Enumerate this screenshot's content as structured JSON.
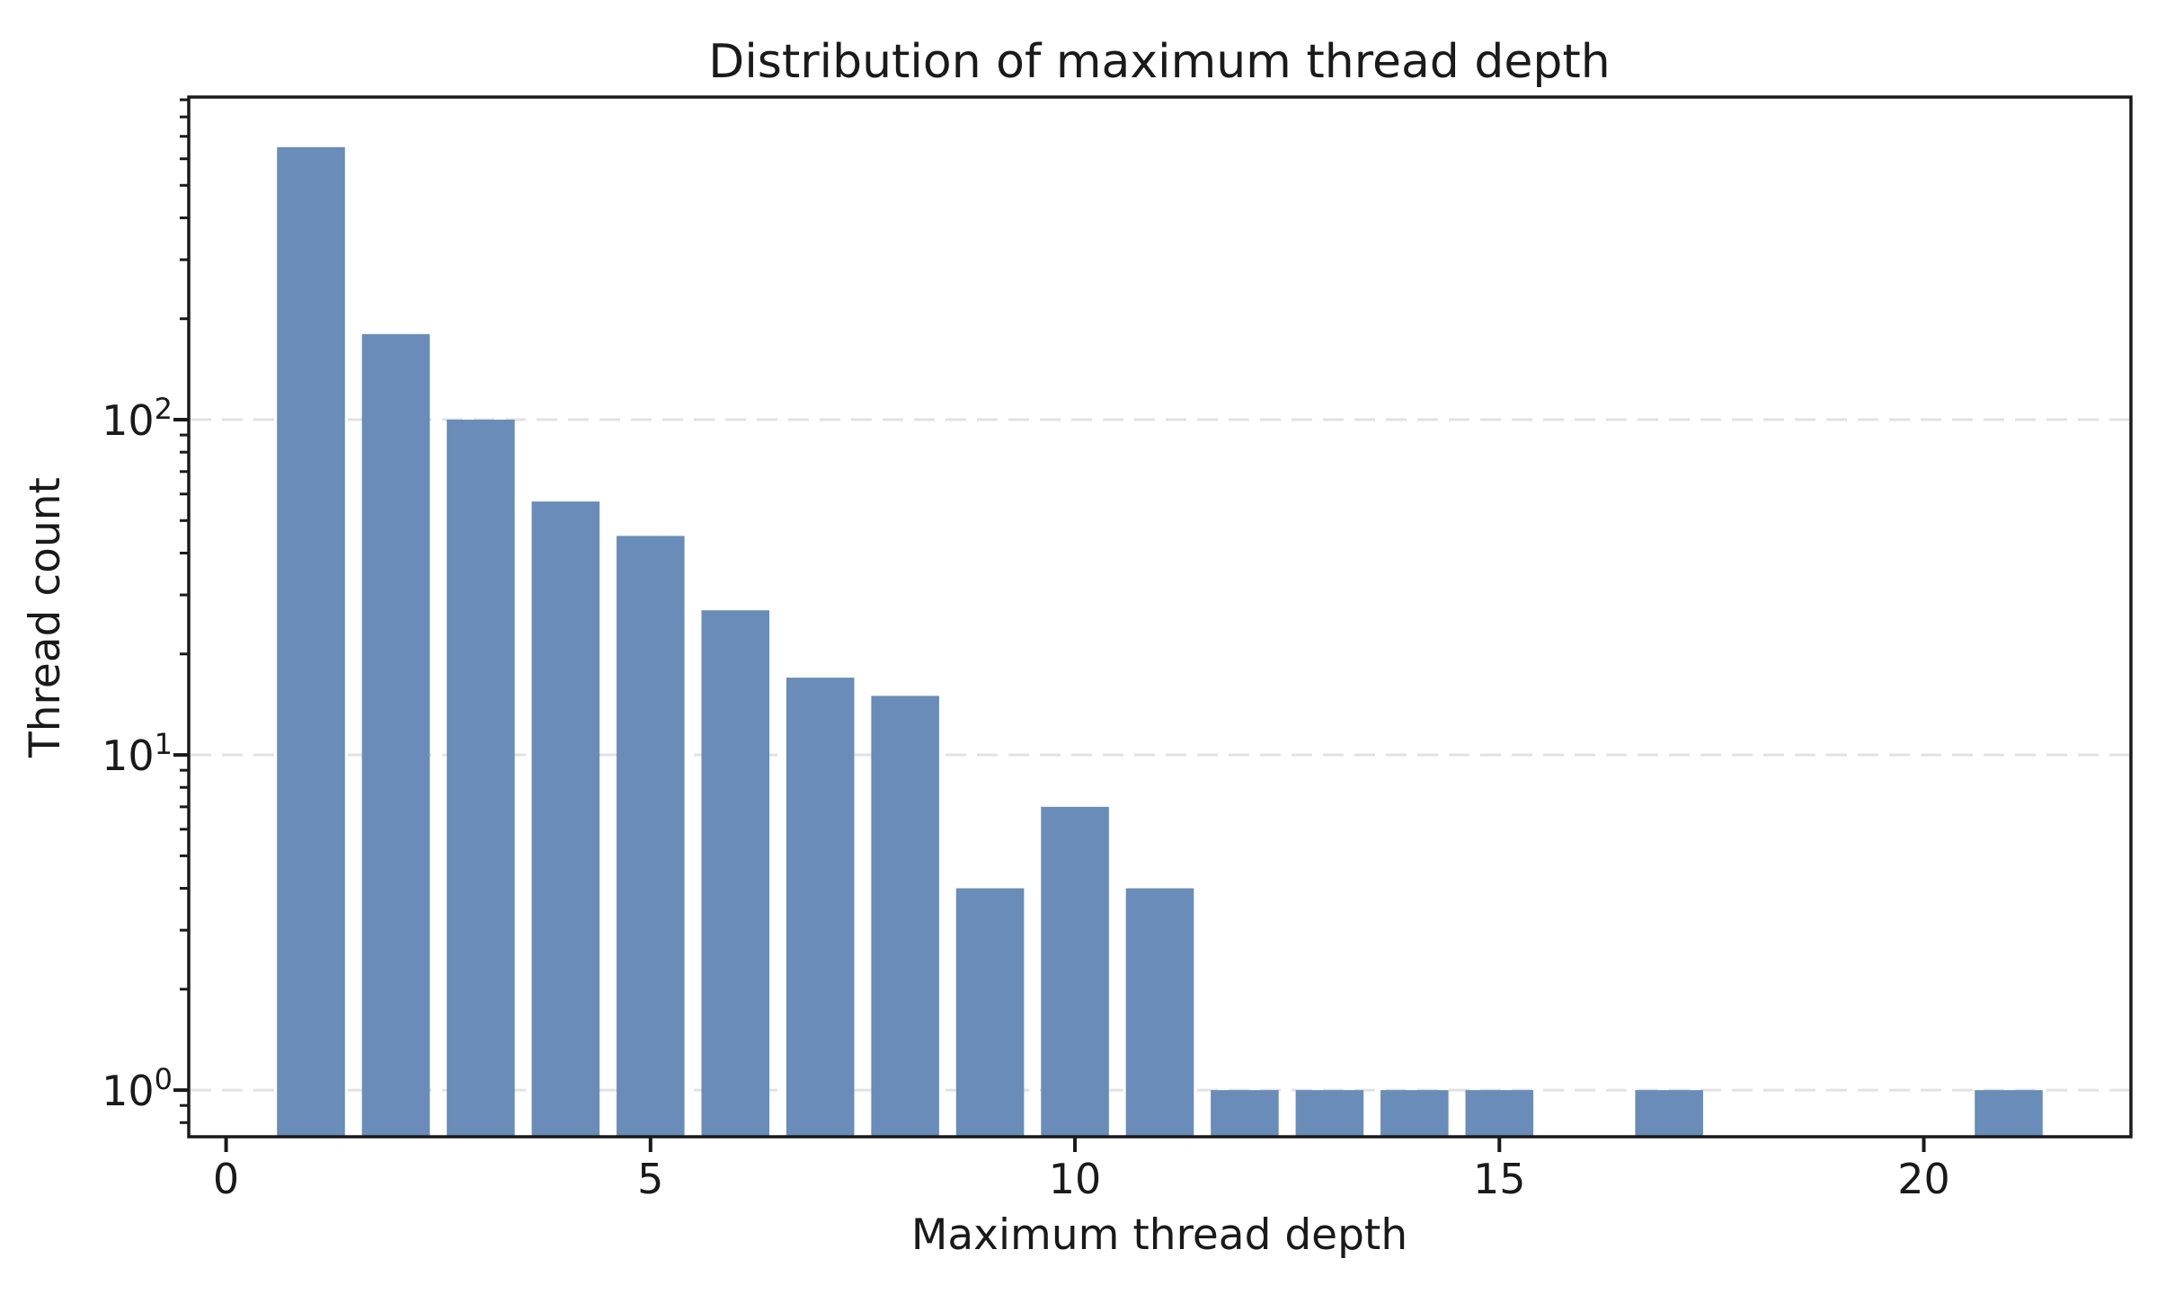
{
  "chart_data": {
    "type": "bar",
    "title": "Distribution of maximum thread depth",
    "xlabel": "Maximum thread depth",
    "ylabel": "Thread count",
    "yscale": "log",
    "xlim": [
      -0.44,
      22.44
    ],
    "ylim": [
      0.726,
      917
    ],
    "grid": {
      "axis": "y",
      "which": "major",
      "style": "dashed",
      "on": true
    },
    "legend": null,
    "bar_width": 0.8,
    "x": [
      1,
      2,
      3,
      4,
      5,
      6,
      7,
      8,
      9,
      10,
      11,
      12,
      13,
      14,
      15,
      17,
      21
    ],
    "values": [
      650,
      180,
      100,
      57,
      45,
      27,
      17,
      15,
      4,
      7,
      4,
      1,
      1,
      1,
      1,
      1,
      1
    ],
    "x_ticks": {
      "values": [
        0,
        5,
        10,
        15,
        20
      ],
      "labels": [
        "0",
        "5",
        "10",
        "15",
        "20"
      ]
    },
    "y_ticks": {
      "values": [
        1,
        10,
        100
      ],
      "labels": [
        {
          "base": "10",
          "exp": "0"
        },
        {
          "base": "10",
          "exp": "1"
        },
        {
          "base": "10",
          "exp": "2"
        }
      ]
    },
    "colors": {
      "bar": "#698cb8",
      "grid": "#e2e2e2",
      "frame": "#1a1a1a",
      "text": "#1a1a1a",
      "background": "#ffffff"
    }
  }
}
